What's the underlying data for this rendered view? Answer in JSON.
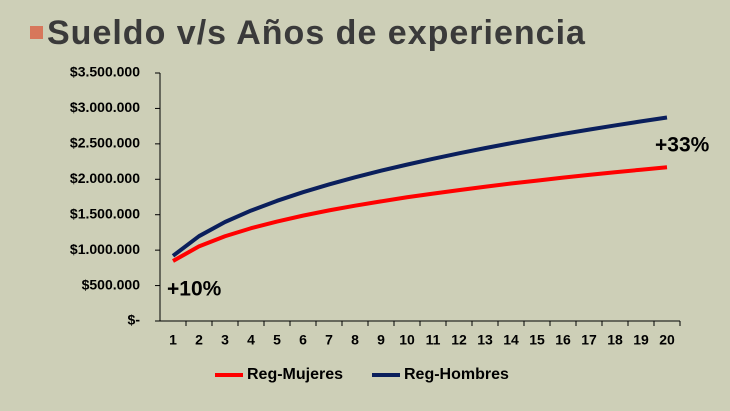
{
  "chart_data": {
    "type": "line",
    "title": "Sueldo v/s Años de experiencia",
    "categories": [
      "1",
      "2",
      "3",
      "4",
      "5",
      "6",
      "7",
      "8",
      "9",
      "10",
      "11",
      "12",
      "13",
      "14",
      "15",
      "16",
      "17",
      "18",
      "19",
      "20"
    ],
    "series": [
      {
        "name": "Reg-Mujeres",
        "color": "#ff0000",
        "values": [
          847000,
          1053000,
          1196000,
          1309000,
          1404000,
          1487000,
          1561000,
          1627000,
          1688000,
          1746000,
          1798000,
          1847000,
          1895000,
          1940000,
          1981000,
          2023000,
          2062000,
          2100000,
          2135000,
          2170000
        ]
      },
      {
        "name": "Reg-Hombres",
        "color": "#0a1f5c",
        "values": [
          920000,
          1197000,
          1397000,
          1558000,
          1696000,
          1818000,
          1927000,
          2028000,
          2121000,
          2207000,
          2289000,
          2366000,
          2440000,
          2509000,
          2576000,
          2640000,
          2701000,
          2760000,
          2817000,
          2872000
        ]
      }
    ],
    "ylim": [
      0,
      3500000
    ],
    "yticks": [
      {
        "value": 0,
        "label": "$-"
      },
      {
        "value": 500000,
        "label": "$500.000"
      },
      {
        "value": 1000000,
        "label": "$1.000.000"
      },
      {
        "value": 1500000,
        "label": "$1.500.000"
      },
      {
        "value": 2000000,
        "label": "$2.000.000"
      },
      {
        "value": 2500000,
        "label": "$2.500.000"
      },
      {
        "value": 3000000,
        "label": "$3.000.000"
      },
      {
        "value": 3500000,
        "label": "$3.500.000"
      }
    ],
    "annotations": [
      "+10%",
      "+33%"
    ],
    "grid": false,
    "legend": "bottom"
  }
}
